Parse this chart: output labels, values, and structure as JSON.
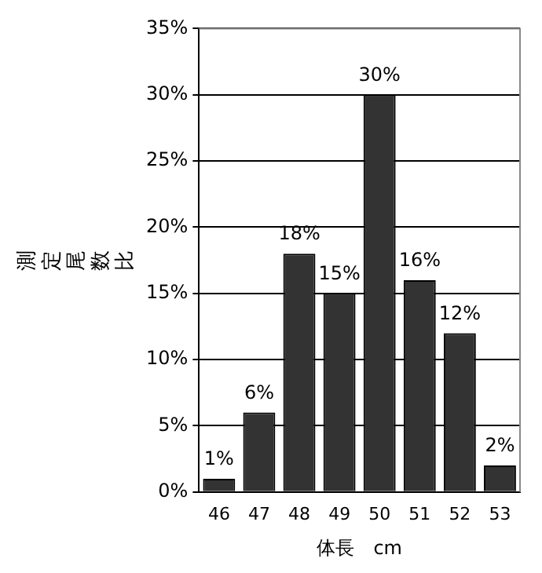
{
  "chart_data": {
    "type": "bar",
    "xlabel": "体長　cm",
    "ylabel": "測定尾数比",
    "categories": [
      "46",
      "47",
      "48",
      "49",
      "50",
      "51",
      "52",
      "53"
    ],
    "values": [
      1,
      6,
      18,
      15,
      30,
      16,
      12,
      2
    ],
    "color": "#333333",
    "value_labels": [
      "1%",
      "6%",
      "18%",
      "15%",
      "30%",
      "16%",
      "12%",
      "2%"
    ],
    "ylim": [
      0,
      35
    ],
    "yticks": [
      {
        "value": 0,
        "label": "0%"
      },
      {
        "value": 5,
        "label": "5%"
      },
      {
        "value": 10,
        "label": "10%"
      },
      {
        "value": 15,
        "label": "15%"
      },
      {
        "value": 20,
        "label": "20%"
      },
      {
        "value": 25,
        "label": "25%"
      },
      {
        "value": 30,
        "label": "30%"
      },
      {
        "value": 35,
        "label": "35%"
      }
    ],
    "grid": "y",
    "legend": false
  }
}
